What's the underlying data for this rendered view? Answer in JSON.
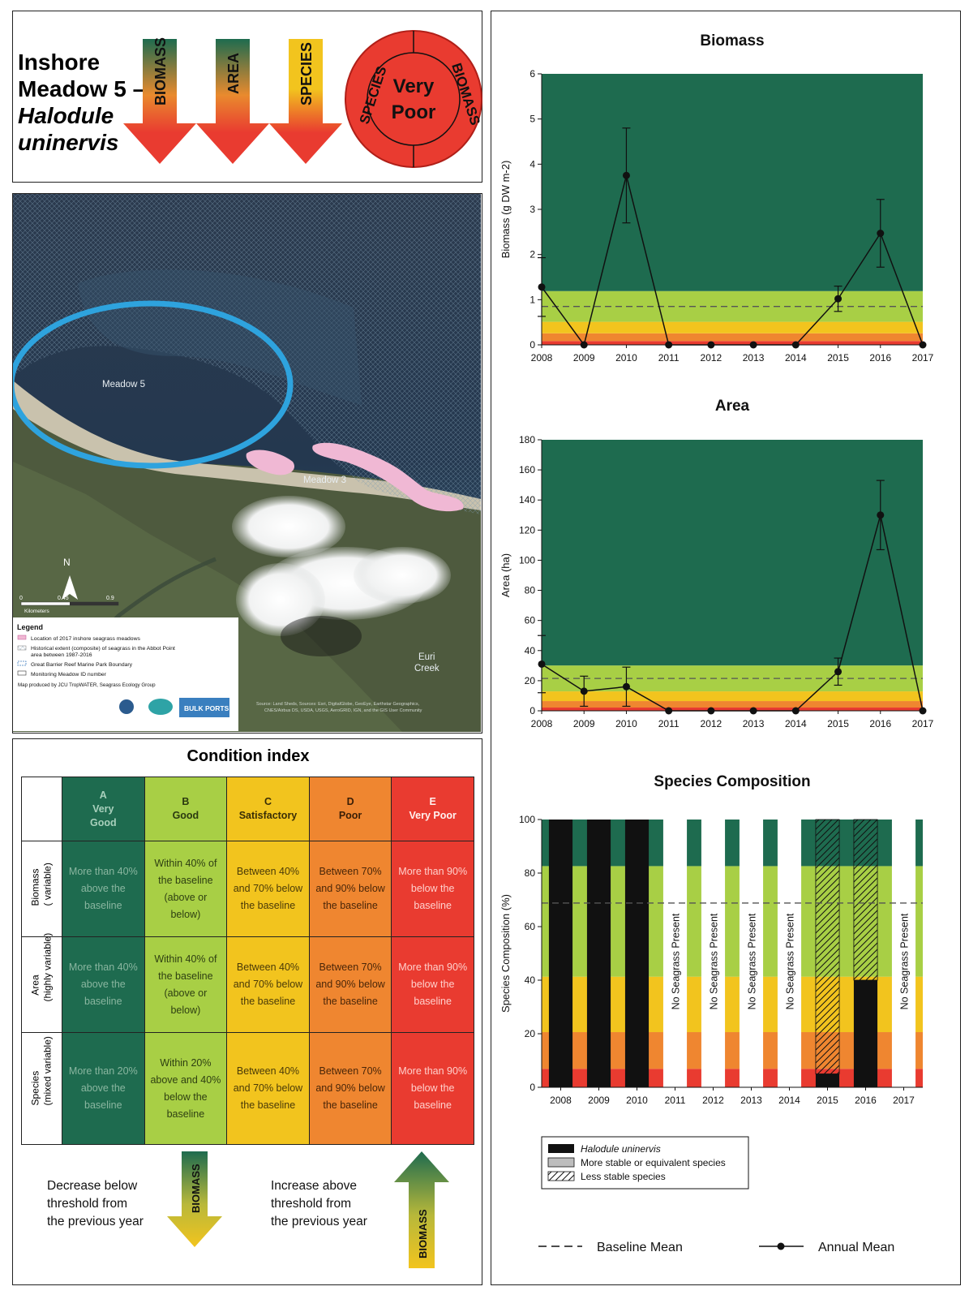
{
  "header": {
    "title_line1": "Inshore",
    "title_line2": "Meadow 5 –",
    "title_line3": "Halodule",
    "title_line4": "uninervis",
    "arrows": [
      "BIOMASS",
      "AREA",
      "SPECIES"
    ],
    "badge_left": "SPECIES",
    "badge_right": "BIOMASS",
    "badge_center_line1": "Very",
    "badge_center_line2": "Poor"
  },
  "map": {
    "label_meadow5": "Meadow 5",
    "label_meadow3": "Meadow 3",
    "label_creek_line1": "Euri",
    "label_creek_line2": "Creek",
    "north": "N",
    "scale_0": "0",
    "scale_mid": "0.45",
    "scale_end": "0.9",
    "scale_unit": "Kilometers",
    "legend_title": "Legend",
    "legend_items": [
      "Location of 2017 inshore seagrass meadows",
      "Historical extent (composite) of seagrass in the Abbot Point",
      "area between 1987-2016",
      "Great Barrier Reef Marine Park Boundary",
      "Monitoring Meadow ID number",
      "Map produced by JCU TropWATER, Seagrass Ecology Group"
    ],
    "logo_text": "BULK PORTS",
    "credit_line1": "Source: Land Sheds, Sources: Esri, DigitalGlobe, GeoEye, Earthstar Geographics,",
    "credit_line2": "CNES/Airbus DS, USDA, USGS, AeroGRID, IGN, and the GIS User Community"
  },
  "condition": {
    "title": "Condition index",
    "grades": [
      {
        "letter": "A",
        "name1": "Very",
        "name2": "Good"
      },
      {
        "letter": "B",
        "name1": "Good",
        "name2": ""
      },
      {
        "letter": "C",
        "name1": "Satisfactory",
        "name2": ""
      },
      {
        "letter": "D",
        "name1": "Poor",
        "name2": ""
      },
      {
        "letter": "E",
        "name1": "Very Poor",
        "name2": ""
      }
    ],
    "rows": [
      {
        "label1": "Biomass",
        "label2": "( variable)",
        "cells": [
          "More than 40% above the baseline",
          "Within 40% of the baseline (above or below)",
          "Between 40% and 70% below the baseline",
          "Between 70% and 90% below the baseline",
          "More than 90% below the baseline"
        ]
      },
      {
        "label1": "Area",
        "label2": "(highly variable)",
        "cells": [
          "More than 40% above the baseline",
          "Within 40% of the baseline (above or below)",
          "Between 40% and 70% below the baseline",
          "Between 70% and 90% below the baseline",
          "More than 90% below the baseline"
        ]
      },
      {
        "label1": "Species",
        "label2": "(mixed variable)",
        "cells": [
          "More than 20% above the baseline",
          "Within 20% above and 40% below the baseline",
          "Between 40% and 70% below the baseline",
          "Between 70% and 90% below the baseline",
          "More than 90% below the baseline"
        ]
      }
    ],
    "decrease_line1": "Decrease below",
    "decrease_line2": "threshold from",
    "decrease_line3": "the previous year",
    "increase_line1": "Increase above",
    "increase_line2": "threshold from",
    "increase_line3": "the previous year",
    "arrow_word": "BIOMASS"
  },
  "colors": {
    "very_good": "#1e6b4f",
    "good": "#a8cf45",
    "satisfactory": "#f2c41e",
    "poor": "#ef8630",
    "very_poor": "#e93b30"
  },
  "chart_data": [
    {
      "type": "line",
      "title": "Biomass",
      "xlabel": "",
      "ylabel": "Biomass (g DW m-2)",
      "x": [
        2008,
        2009,
        2010,
        2011,
        2012,
        2013,
        2014,
        2015,
        2016,
        2017
      ],
      "ylim": [
        0,
        6
      ],
      "yticks": [
        0,
        1,
        2,
        3,
        4,
        5,
        6
      ],
      "series": [
        {
          "name": "Annual Mean",
          "values": [
            1.28,
            0,
            3.75,
            0,
            0,
            0,
            0,
            1.02,
            2.47,
            0
          ],
          "error": [
            0.65,
            0,
            1.05,
            0,
            0,
            0,
            0,
            0.28,
            0.75,
            0
          ]
        }
      ],
      "baseline": 0.85,
      "bands": {
        "very_poor": [
          0,
          0.085
        ],
        "poor": [
          0.085,
          0.255
        ],
        "satisfactory": [
          0.255,
          0.51
        ],
        "good": [
          0.51,
          1.19
        ],
        "very_good": [
          1.19,
          6
        ]
      }
    },
    {
      "type": "line",
      "title": "Area",
      "xlabel": "",
      "ylabel": "Area (ha)",
      "x": [
        2008,
        2009,
        2010,
        2011,
        2012,
        2013,
        2014,
        2015,
        2016,
        2017
      ],
      "ylim": [
        0,
        180
      ],
      "yticks": [
        0,
        20,
        40,
        60,
        80,
        100,
        120,
        140,
        160,
        180
      ],
      "series": [
        {
          "name": "Annual Mean",
          "values": [
            31,
            13,
            16,
            0,
            0,
            0,
            0,
            26,
            130,
            0
          ],
          "error": [
            19,
            10,
            13,
            0,
            0,
            0,
            0,
            9,
            23,
            0
          ]
        }
      ],
      "baseline": 21.5,
      "bands": {
        "very_poor": [
          0,
          2.15
        ],
        "poor": [
          2.15,
          6.45
        ],
        "satisfactory": [
          6.45,
          12.9
        ],
        "good": [
          12.9,
          30.1
        ],
        "very_good": [
          30.1,
          180
        ]
      }
    },
    {
      "type": "bar",
      "title": "Species Composition",
      "xlabel": "",
      "ylabel": "Species Composition (%)",
      "categories": [
        "2008",
        "2009",
        "2010",
        "2011",
        "2012",
        "2013",
        "2014",
        "2015",
        "2016",
        "2017"
      ],
      "ylim": [
        0,
        100
      ],
      "yticks": [
        0,
        20,
        40,
        60,
        80,
        100
      ],
      "series": [
        {
          "name": "Halodule uninervis",
          "values": [
            100,
            100,
            100,
            0,
            0,
            0,
            0,
            5,
            40,
            0
          ]
        },
        {
          "name": "More stable or equivalent species",
          "values": [
            0,
            0,
            0,
            0,
            0,
            0,
            0,
            0,
            0,
            0
          ]
        },
        {
          "name": "Less stable species",
          "values": [
            0,
            0,
            0,
            0,
            0,
            0,
            0,
            95,
            60,
            0
          ]
        }
      ],
      "no_seagrass_label": "No Seagrass Present",
      "no_seagrass_years": [
        "2011",
        "2012",
        "2013",
        "2014",
        "2017"
      ],
      "baseline": 68.8,
      "bands": {
        "very_poor": [
          0,
          6.9
        ],
        "poor": [
          6.9,
          20.6
        ],
        "satisfactory": [
          20.6,
          41.3
        ],
        "good": [
          41.3,
          82.6
        ],
        "very_good": [
          82.6,
          100
        ]
      }
    }
  ],
  "legend": {
    "baseline_label": "Baseline Mean",
    "annual_label": "Annual Mean"
  }
}
